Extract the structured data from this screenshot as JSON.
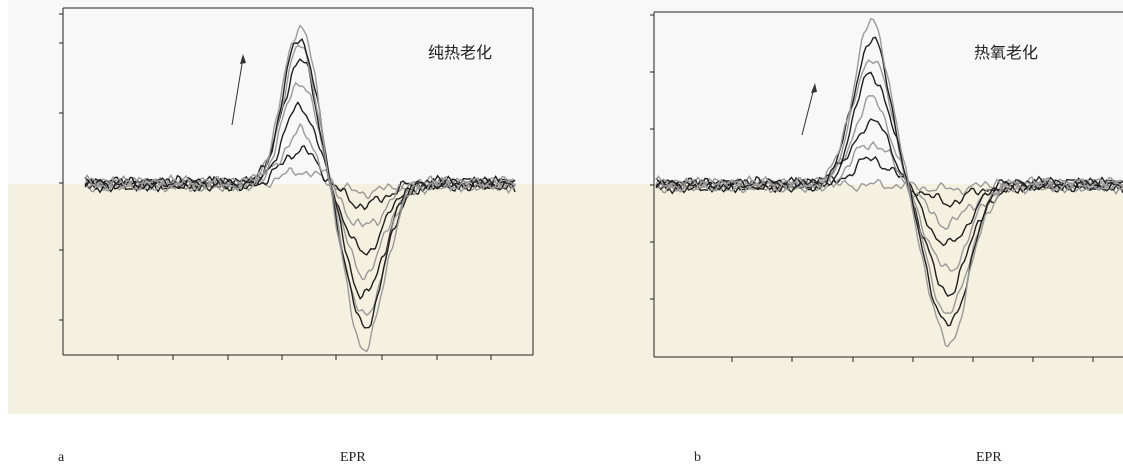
{
  "colors": {
    "upper_bg": "#f8f8f8",
    "lower_bg": "#f4f1e0",
    "axis": "#222222",
    "ink_dark": "#1f1f1f",
    "ink_light": "#9a9a9a"
  },
  "panels": [
    {
      "letter": "a",
      "caption": "EPR"
    },
    {
      "letter": "b",
      "caption": "EPR"
    }
  ],
  "chart_data": [
    {
      "type": "line",
      "title": "纯热老化",
      "xlabel": "EPR",
      "ylabel": "",
      "xlim": [
        0,
        400
      ],
      "ylim": [
        -200,
        200
      ],
      "grid": false,
      "legend": "none",
      "annotation": "arrow indicating increasing peak amplitude",
      "series_shape": {
        "peak_x": 200,
        "trough_x": 260
      },
      "series_amplitudes": {
        "positive_peak": [
          15,
          40,
          60,
          90,
          120,
          145,
          160,
          170,
          185
        ],
        "negative_trough": [
          -10,
          -25,
          -50,
          -80,
          -105,
          -130,
          -155,
          -165,
          -190
        ]
      }
    },
    {
      "type": "line",
      "title": "热氧老化",
      "xlabel": "EPR",
      "ylabel": "",
      "xlim": [
        0,
        400
      ],
      "ylim": [
        -200,
        200
      ],
      "grid": false,
      "legend": "none",
      "annotation": "arrow indicating increasing peak amplitude",
      "series_shape": {
        "peak_x": 185,
        "trough_x": 250
      },
      "series_amplitudes": {
        "positive_peak": [
          0,
          30,
          50,
          75,
          100,
          130,
          150,
          170,
          190
        ],
        "negative_trough": [
          -5,
          -20,
          -45,
          -70,
          -100,
          -125,
          -150,
          -165,
          -185
        ]
      }
    }
  ]
}
